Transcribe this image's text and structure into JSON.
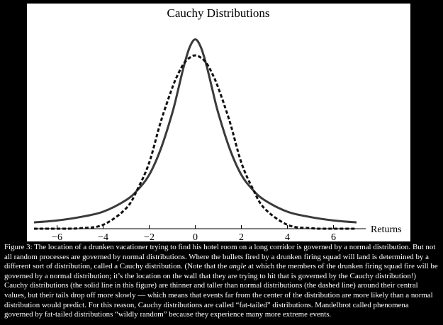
{
  "chart_data": {
    "type": "line",
    "title": "Cauchy Distributions",
    "xlabel": "Returns",
    "ylabel": "",
    "xlim": [
      -7,
      7.4
    ],
    "ylim": [
      0,
      0.42
    ],
    "xticks": [
      -6,
      -4,
      -2,
      0,
      2,
      4,
      6
    ],
    "xtick_labels": [
      "−6",
      "−4",
      "−2",
      "0",
      "2",
      "4",
      "6"
    ],
    "grid": false,
    "legend": "none",
    "series": [
      {
        "style": "solid",
        "color": "#3a3a3a",
        "x": [
          -7,
          -6,
          -5,
          -4,
          -3,
          -2.5,
          -2,
          -1.5,
          -1,
          -0.75,
          -0.5,
          -0.25,
          0,
          0.25,
          0.5,
          0.75,
          1,
          1.5,
          2,
          2.5,
          3,
          4,
          5,
          6,
          7
        ],
        "y": [
          0.013,
          0.017,
          0.024,
          0.035,
          0.059,
          0.08,
          0.111,
          0.164,
          0.238,
          0.285,
          0.334,
          0.373,
          0.39,
          0.373,
          0.334,
          0.285,
          0.238,
          0.164,
          0.111,
          0.08,
          0.059,
          0.035,
          0.024,
          0.017,
          0.013
        ]
      },
      {
        "style": "dashed",
        "color": "#111111",
        "x": [
          -7,
          -6,
          -5,
          -4,
          -3,
          -2.5,
          -2,
          -1.5,
          -1,
          -0.75,
          -0.5,
          -0.25,
          0,
          0.25,
          0.5,
          0.75,
          1,
          1.5,
          2,
          2.5,
          3,
          4,
          5,
          6,
          7
        ],
        "y": [
          0.0,
          0.0,
          0.001,
          0.008,
          0.042,
          0.082,
          0.136,
          0.22,
          0.29,
          0.318,
          0.34,
          0.352,
          0.357,
          0.352,
          0.34,
          0.318,
          0.29,
          0.22,
          0.136,
          0.082,
          0.042,
          0.008,
          0.001,
          0.0,
          0.0
        ]
      }
    ]
  },
  "caption": {
    "part1": "Figure 3: The location of a drunken vacationer trying to find his hotel room on a long corridor is governed by a normal distribution. But not all random processes are governed by normal distributions. Where the bullets fired by a drunken firing squad will land is determined by a different sort of distribution, called a Cauchy distribution. (Note that the ",
    "emphasis": "angle",
    "part2": " at which the members of the drunken firing squad fire will be governed by a normal distribution; it’s the location on the wall that they are trying to hit that is governed by the Cauchy distribution!) Cauchy distributions (the solid line in this figure) are thinner and taller than normal distributions (the dashed line) around their central values, but their tails drop off more slowly — which means that events far from the center of the distribution are more likely than a normal distribution would predict. For this reason, Cauchy distributions are called “fat-tailed” distributions. Mandelbrot called phenomena governed by fat-tailed distributions “wildly random” because they experience many more extreme events."
  }
}
